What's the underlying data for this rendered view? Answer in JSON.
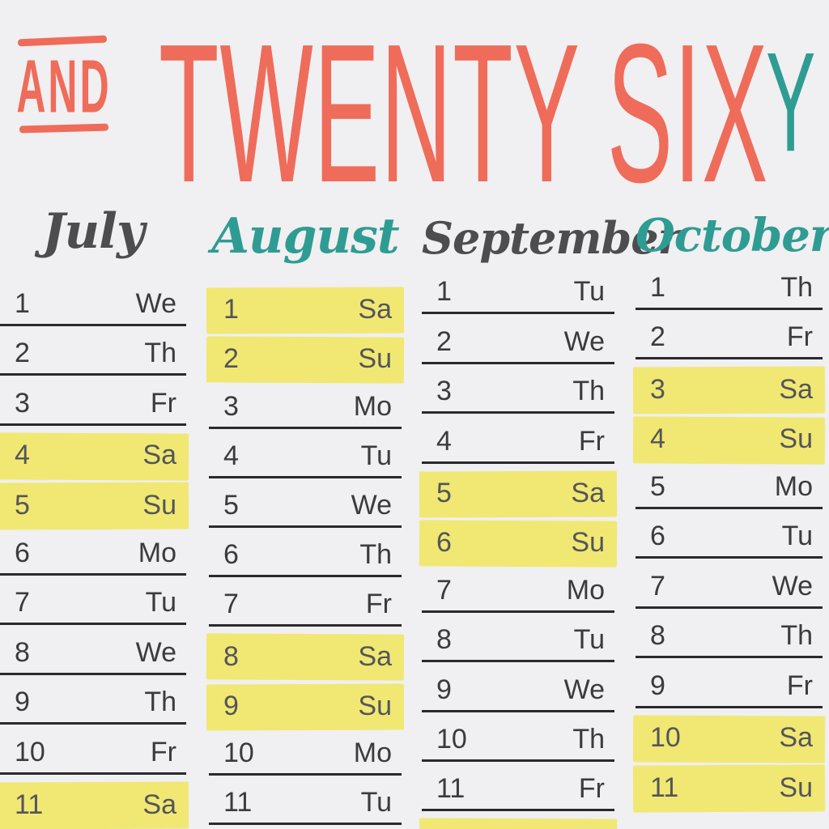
{
  "header": {
    "prefix": "AND",
    "title": "TWENTY SIX",
    "suffix": "Y"
  },
  "colors": {
    "background": "#f0eff1",
    "coral": "#ef6c5a",
    "teal": "#2f9c93",
    "highlight_yellow": "#f0e873",
    "day_text": "#3b3b3f",
    "underline": "#2a2a2c",
    "script_gray": "#4d4d50"
  },
  "months": [
    {
      "name": "July",
      "color": "#4d4d50",
      "days": [
        {
          "d": "1",
          "w": "We",
          "hl": false
        },
        {
          "d": "2",
          "w": "Th",
          "hl": false
        },
        {
          "d": "3",
          "w": "Fr",
          "hl": false
        },
        {
          "d": "4",
          "w": "Sa",
          "hl": true
        },
        {
          "d": "5",
          "w": "Su",
          "hl": true
        },
        {
          "d": "6",
          "w": "Mo",
          "hl": false
        },
        {
          "d": "7",
          "w": "Tu",
          "hl": false
        },
        {
          "d": "8",
          "w": "We",
          "hl": false
        },
        {
          "d": "9",
          "w": "Th",
          "hl": false
        },
        {
          "d": "10",
          "w": "Fr",
          "hl": false
        },
        {
          "d": "11",
          "w": "Sa",
          "hl": true
        }
      ]
    },
    {
      "name": "August",
      "color": "#2f9c93",
      "days": [
        {
          "d": "1",
          "w": "Sa",
          "hl": true
        },
        {
          "d": "2",
          "w": "Su",
          "hl": true
        },
        {
          "d": "3",
          "w": "Mo",
          "hl": false
        },
        {
          "d": "4",
          "w": "Tu",
          "hl": false
        },
        {
          "d": "5",
          "w": "We",
          "hl": false
        },
        {
          "d": "6",
          "w": "Th",
          "hl": false
        },
        {
          "d": "7",
          "w": "Fr",
          "hl": false
        },
        {
          "d": "8",
          "w": "Sa",
          "hl": true
        },
        {
          "d": "9",
          "w": "Su",
          "hl": true
        },
        {
          "d": "10",
          "w": "Mo",
          "hl": false
        },
        {
          "d": "11",
          "w": "Tu",
          "hl": false
        }
      ]
    },
    {
      "name": "September",
      "color": "#4d4d50",
      "days": [
        {
          "d": "1",
          "w": "Tu",
          "hl": false
        },
        {
          "d": "2",
          "w": "We",
          "hl": false
        },
        {
          "d": "3",
          "w": "Th",
          "hl": false
        },
        {
          "d": "4",
          "w": "Fr",
          "hl": false
        },
        {
          "d": "5",
          "w": "Sa",
          "hl": true
        },
        {
          "d": "6",
          "w": "Su",
          "hl": true
        },
        {
          "d": "7",
          "w": "Mo",
          "hl": false
        },
        {
          "d": "8",
          "w": "Tu",
          "hl": false
        },
        {
          "d": "9",
          "w": "We",
          "hl": false
        },
        {
          "d": "10",
          "w": "Th",
          "hl": false
        },
        {
          "d": "11",
          "w": "Fr",
          "hl": false
        },
        {
          "d": "",
          "w": "",
          "hl": true
        }
      ]
    },
    {
      "name": "October",
      "color": "#2f9c93",
      "days": [
        {
          "d": "1",
          "w": "Th",
          "hl": false
        },
        {
          "d": "2",
          "w": "Fr",
          "hl": false
        },
        {
          "d": "3",
          "w": "Sa",
          "hl": true
        },
        {
          "d": "4",
          "w": "Su",
          "hl": true
        },
        {
          "d": "5",
          "w": "Mo",
          "hl": false
        },
        {
          "d": "6",
          "w": "Tu",
          "hl": false
        },
        {
          "d": "7",
          "w": "We",
          "hl": false
        },
        {
          "d": "8",
          "w": "Th",
          "hl": false
        },
        {
          "d": "9",
          "w": "Fr",
          "hl": false
        },
        {
          "d": "10",
          "w": "Sa",
          "hl": true
        },
        {
          "d": "11",
          "w": "Su",
          "hl": true
        }
      ]
    }
  ]
}
